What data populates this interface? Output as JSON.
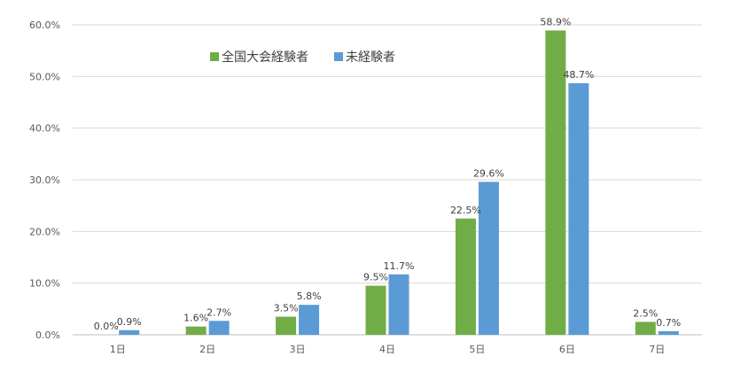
{
  "chart_data": {
    "type": "bar",
    "categories": [
      "1日",
      "2日",
      "3日",
      "4日",
      "5日",
      "6日",
      "7日"
    ],
    "series": [
      {
        "name": "全国大会経験者",
        "values": [
          0.0,
          1.6,
          3.5,
          9.5,
          22.5,
          58.9,
          2.5
        ],
        "labels": [
          "0.0%",
          "1.6%",
          "3.5%",
          "9.5%",
          "22.5%",
          "58.9%",
          "2.5%"
        ],
        "color": "#70ad47"
      },
      {
        "name": "未経験者",
        "values": [
          0.9,
          2.7,
          5.8,
          11.7,
          29.6,
          48.7,
          0.7
        ],
        "labels": [
          "0.9%",
          "2.7%",
          "5.8%",
          "11.7%",
          "29.6%",
          "48.7%",
          "0.7%"
        ],
        "color": "#5b9bd5"
      }
    ],
    "ylim": [
      0,
      60
    ],
    "yticks": [
      "0.0%",
      "10.0%",
      "20.0%",
      "30.0%",
      "40.0%",
      "50.0%",
      "60.0%"
    ],
    "grid": true,
    "legend_position": "top-left"
  }
}
